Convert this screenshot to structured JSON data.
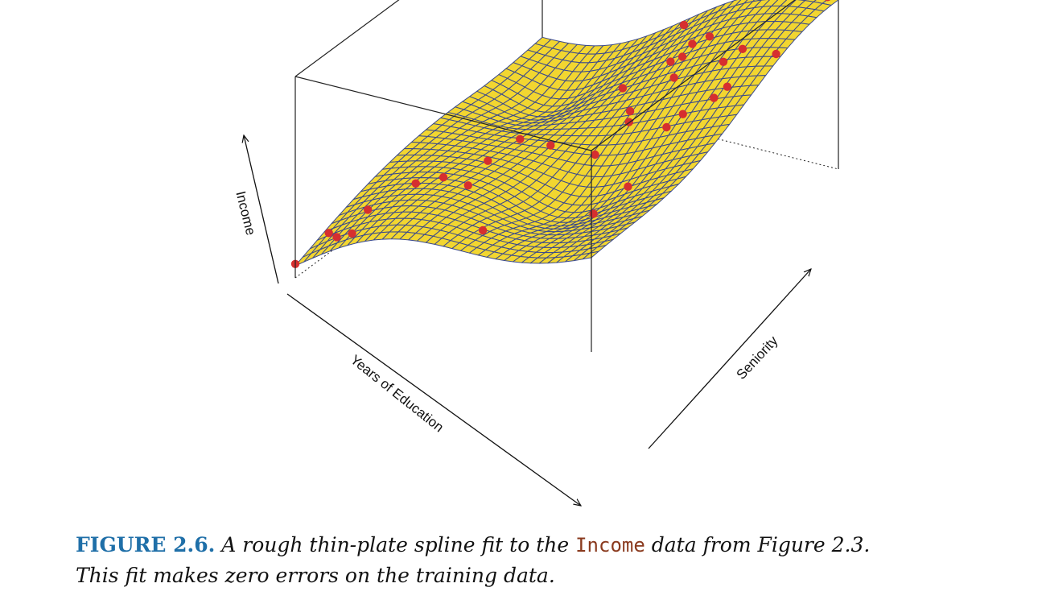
{
  "chart_data": {
    "type": "scatter",
    "subtype": "3d-surface-with-points",
    "title": "",
    "xlabel": "Years of Education",
    "ylabel": "Seniority",
    "zlabel": "Income",
    "grid": false,
    "legend": "none",
    "colors": {
      "surface": "#f2d630",
      "mesh": "#3b4a8c",
      "points": "#d62f2f",
      "box": "#222222"
    },
    "points": [
      {
        "x": 0.0,
        "y": 0.0,
        "z": 0.3
      },
      {
        "x": 0.03,
        "y": 0.1,
        "z": 0.05
      },
      {
        "x": 0.09,
        "y": 0.06,
        "z": 0.05
      },
      {
        "x": 0.12,
        "y": 0.15,
        "z": 0.22
      },
      {
        "x": 0.15,
        "y": 0.05,
        "z": 0.1
      },
      {
        "x": 0.19,
        "y": 0.26,
        "z": 0.1
      },
      {
        "x": 0.25,
        "y": 0.3,
        "z": 0.05
      },
      {
        "x": 0.3,
        "y": 0.42,
        "z": 0.05
      },
      {
        "x": 0.3,
        "y": 0.55,
        "z": 0.15
      },
      {
        "x": 0.35,
        "y": 0.28,
        "z": 0.2
      },
      {
        "x": 0.42,
        "y": 0.53,
        "z": 0.55
      },
      {
        "x": 0.48,
        "y": 0.75,
        "z": 0.55
      },
      {
        "x": 0.52,
        "y": 0.95,
        "z": 0.7
      },
      {
        "x": 0.55,
        "y": 0.1,
        "z": 0.45
      },
      {
        "x": 0.57,
        "y": 0.53,
        "z": 0.05
      },
      {
        "x": 0.58,
        "y": 0.66,
        "z": 0.05
      },
      {
        "x": 0.6,
        "y": 0.8,
        "z": 0.45
      },
      {
        "x": 0.61,
        "y": 0.62,
        "z": 0.2
      },
      {
        "x": 0.64,
        "y": 0.8,
        "z": 0.6
      },
      {
        "x": 0.64,
        "y": 0.84,
        "z": 0.6
      },
      {
        "x": 0.67,
        "y": 0.73,
        "z": 0.6
      },
      {
        "x": 0.69,
        "y": 0.85,
        "z": 0.5
      },
      {
        "x": 0.74,
        "y": 0.32,
        "z": 0.1
      },
      {
        "x": 0.77,
        "y": 0.58,
        "z": 0.3
      },
      {
        "x": 0.79,
        "y": 0.4,
        "z": 0.5
      },
      {
        "x": 0.8,
        "y": 0.61,
        "z": 0.35
      },
      {
        "x": 0.82,
        "y": 0.75,
        "z": 0.45
      },
      {
        "x": 0.86,
        "y": 0.78,
        "z": 0.65
      },
      {
        "x": 0.88,
        "y": 0.64,
        "z": 0.55
      },
      {
        "x": 0.9,
        "y": 0.67,
        "z": 0.5
      },
      {
        "x": 0.99,
        "y": 0.76,
        "z": 0.7
      },
      {
        "x": 0.98,
        "y": 0.98,
        "z": 0.85
      }
    ]
  },
  "caption": {
    "label": "FIGURE 2.6.",
    "text_before": "A rough thin-plate spline fit to the",
    "dataset": "Income",
    "text_after": "data from Figure 2.3.",
    "line2": "This fit makes zero errors on the training data."
  }
}
